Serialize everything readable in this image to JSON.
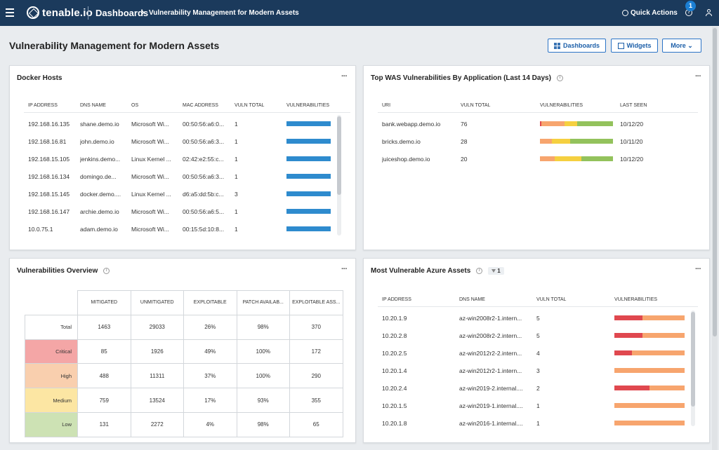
{
  "topbar": {
    "brand": "tenable.io",
    "breadcrumb_main": "Dashboards",
    "breadcrumb_sep": "›",
    "breadcrumb_sub": "Vulnerability Management for Modern Assets",
    "quick_actions": "Quick Actions",
    "notification_count": "1",
    "help_glyph": "?"
  },
  "page": {
    "title": "Vulnerability Management for Modern Assets",
    "buttons": {
      "dashboards": "Dashboards",
      "widgets": "Widgets",
      "more": "More ⌄"
    }
  },
  "docker_hosts": {
    "title": "Docker Hosts",
    "menu": "···",
    "columns": [
      "IP ADDRESS",
      "DNS NAME",
      "OS",
      "MAC ADDRESS",
      "VULN TOTAL",
      "VULNERABILITIES"
    ],
    "rows": [
      {
        "ip": "192.168.16.135",
        "dns": "shane.demo.io",
        "os": "Microsoft Wi...",
        "mac": "00:50:56:a6:0...",
        "vuln": "1"
      },
      {
        "ip": "192.168.16.81",
        "dns": "john.demo.io",
        "os": "Microsoft Wi...",
        "mac": "00:50:56:a6:3...",
        "vuln": "1"
      },
      {
        "ip": "192.168.15.105",
        "dns": "jenkins.demo...",
        "os": "Linux Kernel ...",
        "mac": "02:42:e2:55:c...",
        "vuln": "1"
      },
      {
        "ip": "192.168.16.134",
        "dns": "domingo.de...",
        "os": "Microsoft Wi...",
        "mac": "00:50:56:a6:3...",
        "vuln": "1"
      },
      {
        "ip": "192.168.15.145",
        "dns": "docker.demo....",
        "os": "Linux Kernel ...",
        "mac": "d6:a5:dd:5b:c...",
        "vuln": "3"
      },
      {
        "ip": "192.168.16.147",
        "dns": "archie.demo.io",
        "os": "Microsoft Wi...",
        "mac": "00:50:56:a6:5...",
        "vuln": "1"
      },
      {
        "ip": "10.0.75.1",
        "dns": "adam.demo.io",
        "os": "Microsoft Wi...",
        "mac": "00:15:5d:10:8...",
        "vuln": "1"
      }
    ],
    "bar_color": "#2e8bce"
  },
  "was_vulns": {
    "title": "Top WAS Vulnerabilities By Application (Last 14 Days)",
    "info": "i",
    "menu": "···",
    "columns": [
      "URI",
      "VULN TOTAL",
      "VULNERABILITIES",
      "LAST SEEN"
    ],
    "rows": [
      {
        "uri": "bank.webapp.demo.io",
        "vuln": "76",
        "last_seen": "10/12/20",
        "segments": [
          0.02,
          0.32,
          0.17,
          0.49
        ]
      },
      {
        "uri": "bricks.demo.io",
        "vuln": "28",
        "last_seen": "10/11/20",
        "segments": [
          0,
          0.16,
          0.25,
          0.59
        ]
      },
      {
        "uri": "juiceshop.demo.io",
        "vuln": "20",
        "last_seen": "10/12/20",
        "segments": [
          0,
          0.2,
          0.37,
          0.43
        ]
      }
    ],
    "segment_colors": [
      "#e0484f",
      "#f7a56e",
      "#f5d040",
      "#93c25c"
    ]
  },
  "overview": {
    "title": "Vulnerabilities Overview",
    "info": "i",
    "menu": "···",
    "columns": [
      "MITIGATED",
      "UNMITIGATED",
      "EXPLOITABLE",
      "PATCH AVAILAB...",
      "EXPLOITABLE ASS..."
    ],
    "rows": [
      {
        "label": "Total",
        "color": "#ffffff",
        "values": [
          "1463",
          "29033",
          "26%",
          "98%",
          "370"
        ]
      },
      {
        "label": "Critical",
        "color": "#f4a6a6",
        "values": [
          "85",
          "1926",
          "49%",
          "100%",
          "172"
        ]
      },
      {
        "label": "High",
        "color": "#f9cfae",
        "values": [
          "488",
          "11311",
          "37%",
          "100%",
          "290"
        ]
      },
      {
        "label": "Medium",
        "color": "#fce6a3",
        "values": [
          "759",
          "13524",
          "17%",
          "93%",
          "355"
        ]
      },
      {
        "label": "Low",
        "color": "#cde2b4",
        "values": [
          "131",
          "2272",
          "4%",
          "98%",
          "65"
        ]
      }
    ]
  },
  "azure": {
    "title": "Most Vulnerable Azure Assets",
    "info": "i",
    "filter_count": "1",
    "menu": "···",
    "columns": [
      "IP ADDRESS",
      "DNS NAME",
      "VULN TOTAL",
      "VULNERABILITIES"
    ],
    "rows": [
      {
        "ip": "10.20.1.9",
        "dns": "az-win2008r2-1.intern...",
        "vuln": "5",
        "segments": [
          0.4,
          0.6
        ]
      },
      {
        "ip": "10.20.2.8",
        "dns": "az-win2008r2-2.intern...",
        "vuln": "5",
        "segments": [
          0.4,
          0.6
        ]
      },
      {
        "ip": "10.20.2.5",
        "dns": "az-win2012r2-2.intern...",
        "vuln": "4",
        "segments": [
          0.25,
          0.75
        ]
      },
      {
        "ip": "10.20.1.4",
        "dns": "az-win2012r2-1.intern...",
        "vuln": "3",
        "segments": [
          0,
          1
        ]
      },
      {
        "ip": "10.20.2.4",
        "dns": "az-win2019-2.internal....",
        "vuln": "2",
        "segments": [
          0.5,
          0.5
        ]
      },
      {
        "ip": "10.20.1.5",
        "dns": "az-win2019-1.internal....",
        "vuln": "1",
        "segments": [
          0,
          1
        ]
      },
      {
        "ip": "10.20.1.8",
        "dns": "az-win2016-1.internal....",
        "vuln": "1",
        "segments": [
          0,
          1
        ]
      }
    ],
    "segment_colors": [
      "#e0484f",
      "#f7a56e"
    ]
  }
}
